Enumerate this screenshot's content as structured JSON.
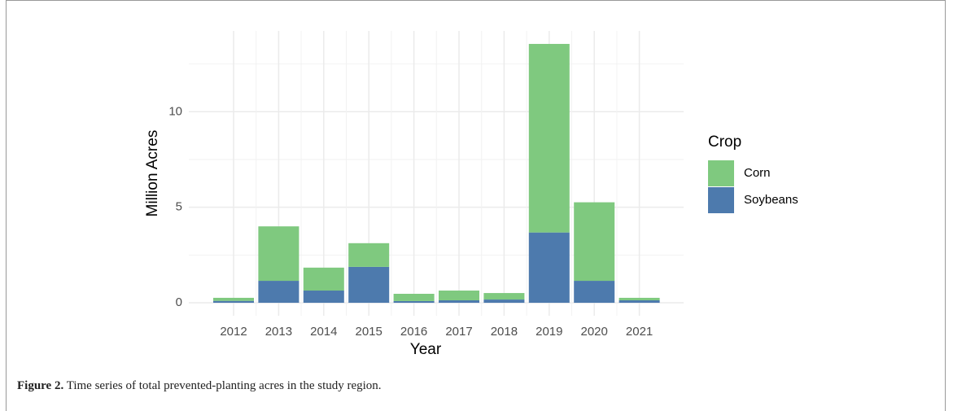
{
  "chart_data": {
    "type": "stacked_bar",
    "categories": [
      "2012",
      "2013",
      "2014",
      "2015",
      "2016",
      "2017",
      "2018",
      "2019",
      "2020",
      "2021"
    ],
    "series": [
      {
        "name": "Corn",
        "color": "#7fc97f",
        "values": [
          0.16,
          2.85,
          1.2,
          1.24,
          0.38,
          0.51,
          0.34,
          9.87,
          4.11,
          0.13
        ]
      },
      {
        "name": "Soybeans",
        "color": "#4d7aad",
        "values": [
          0.1,
          1.15,
          0.64,
          1.88,
          0.09,
          0.13,
          0.17,
          3.68,
          1.15,
          0.13
        ]
      }
    ],
    "x_label": "Year",
    "y_label": "Million Acres",
    "legend_title": "Crop",
    "ylim": [
      -0.68,
      14.23
    ],
    "yticks": [
      0,
      5,
      10
    ],
    "minor_yticks": [
      2.5,
      7.5,
      12.5
    ],
    "grid": true,
    "legend": "right"
  },
  "caption": {
    "label": "Figure 2.",
    "text": "Time series of total prevented-planting acres in the study region."
  }
}
